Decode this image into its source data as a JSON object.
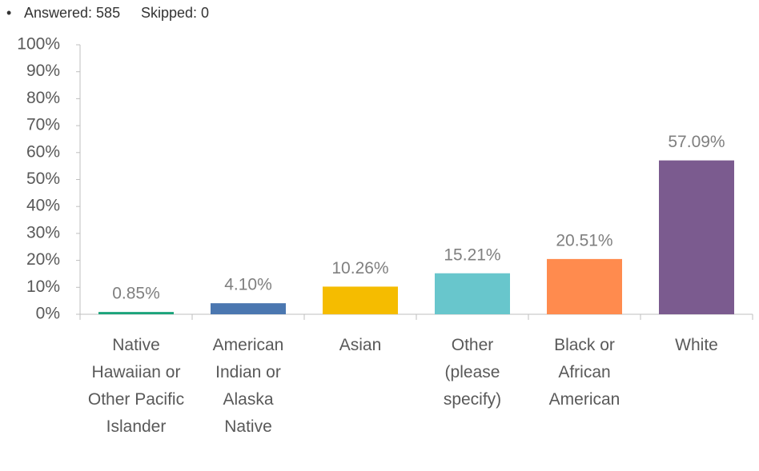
{
  "chart_data": {
    "type": "bar",
    "answered": "Answered: 585",
    "skipped": "Skipped: 0",
    "categories": [
      "Native Hawaiian or Other Pacific Islander",
      "American Indian or Alaska Native",
      "Asian",
      "Other (please specify)",
      "Black or African American",
      "White"
    ],
    "values": [
      0.85,
      4.1,
      10.26,
      15.21,
      20.51,
      57.09
    ],
    "value_labels": [
      "0.85%",
      "4.10%",
      "10.26%",
      "15.21%",
      "20.51%",
      "57.09%"
    ],
    "colors": [
      "#1aa37a",
      "#4b77b0",
      "#f5bc00",
      "#68c6cc",
      "#ff8b4e",
      "#7b5b8f"
    ],
    "ylim": [
      0,
      100
    ],
    "yticks": [
      {
        "value": 0,
        "label": "0%"
      },
      {
        "value": 10,
        "label": "10%"
      },
      {
        "value": 20,
        "label": "20%"
      },
      {
        "value": 30,
        "label": "30%"
      },
      {
        "value": 40,
        "label": "40%"
      },
      {
        "value": 50,
        "label": "50%"
      },
      {
        "value": 60,
        "label": "60%"
      },
      {
        "value": 70,
        "label": "70%"
      },
      {
        "value": 80,
        "label": "80%"
      },
      {
        "value": 90,
        "label": "90%"
      },
      {
        "value": 100,
        "label": "100%"
      }
    ],
    "grid": false
  }
}
